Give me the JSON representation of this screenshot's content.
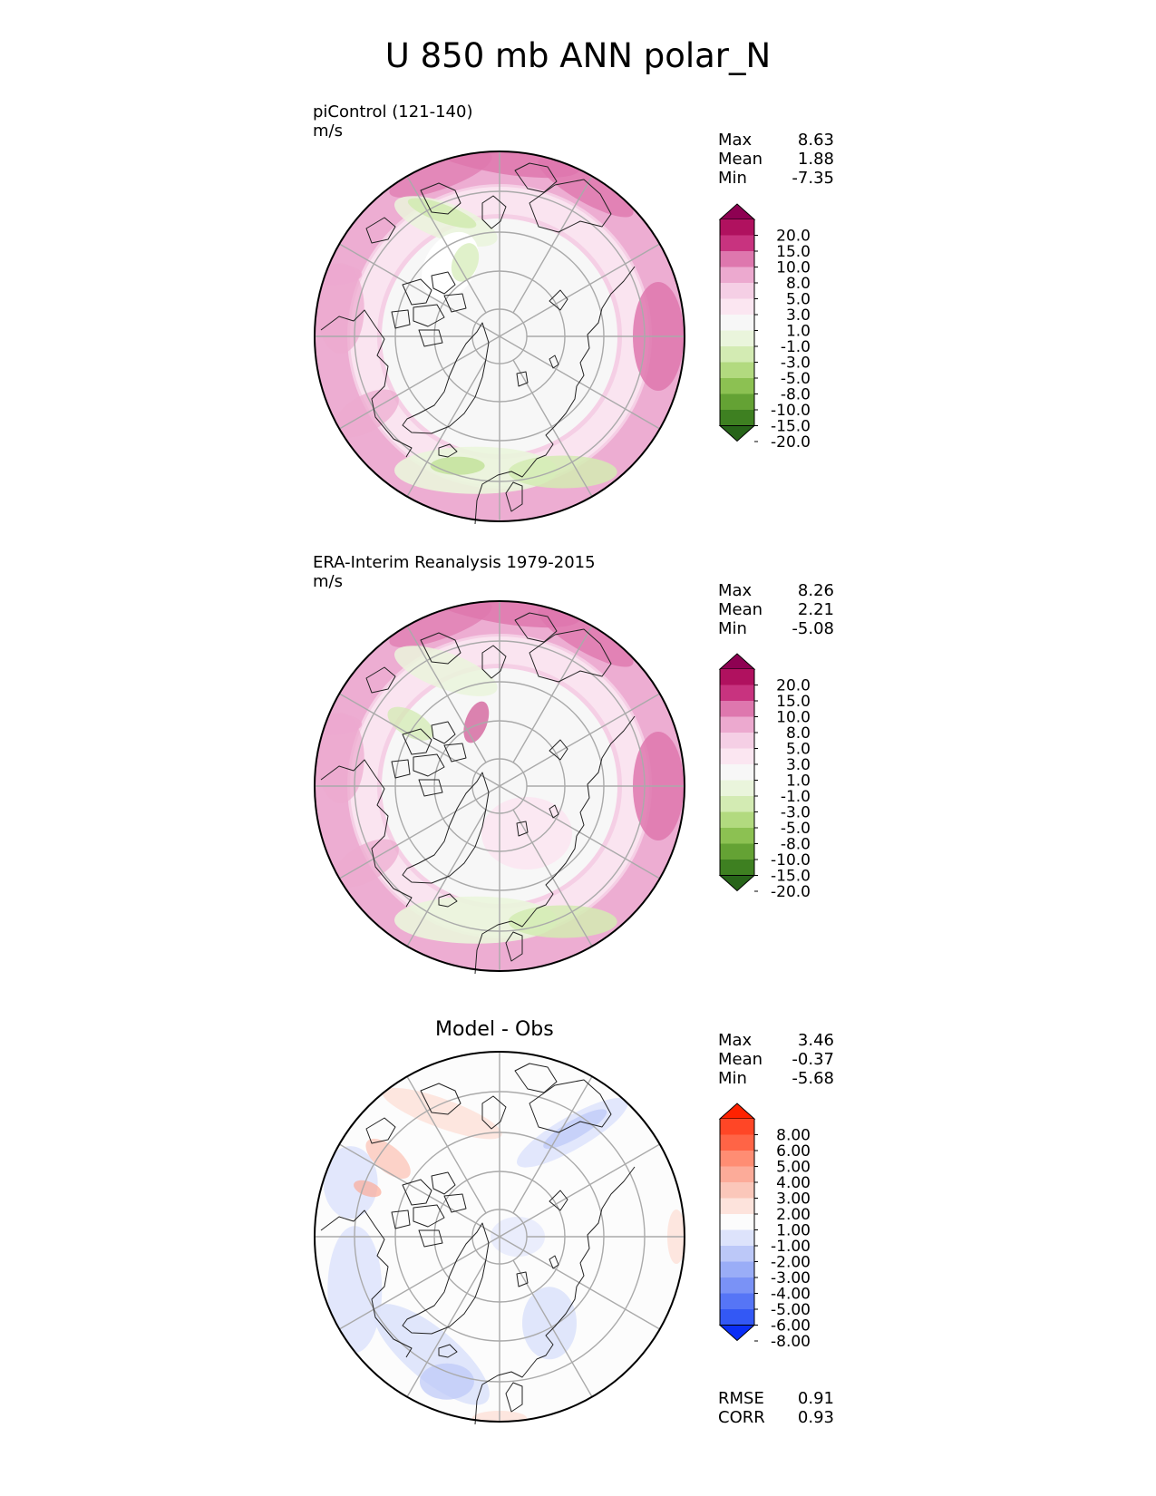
{
  "title": "U 850 mb ANN polar_N",
  "panels": [
    {
      "id": "test",
      "title_line1": "piControl (121-140)",
      "title_line2": "m/s",
      "stats": [
        {
          "label": "Max",
          "value": "8.63"
        },
        {
          "label": "Mean",
          "value": "1.88"
        },
        {
          "label": "Min",
          "value": "-7.35"
        }
      ],
      "colorbar": {
        "labels": [
          "20.0",
          "15.0",
          "10.0",
          "8.0",
          "5.0",
          "3.0",
          "1.0",
          "-1.0",
          "-3.0",
          "-5.0",
          "-8.0",
          "-10.0",
          "-15.0",
          "-20.0"
        ],
        "colors": [
          "#8e0152",
          "#b0115f",
          "#c8337f",
          "#de77ae",
          "#eca9cf",
          "#f5cfe5",
          "#fbe6f1",
          "#f7f7f7",
          "#eaf5dc",
          "#d3ebb3",
          "#b2da7f",
          "#8cc152",
          "#64a234",
          "#3e8021",
          "#276419"
        ]
      }
    },
    {
      "id": "reference",
      "title_line1": "ERA-Interim Reanalysis 1979-2015",
      "title_line2": "m/s",
      "stats": [
        {
          "label": "Max",
          "value": "8.26"
        },
        {
          "label": "Mean",
          "value": "2.21"
        },
        {
          "label": "Min",
          "value": "-5.08"
        }
      ],
      "colorbar": {
        "labels": [
          "20.0",
          "15.0",
          "10.0",
          "8.0",
          "5.0",
          "3.0",
          "1.0",
          "-1.0",
          "-3.0",
          "-5.0",
          "-8.0",
          "-10.0",
          "-15.0",
          "-20.0"
        ],
        "colors": [
          "#8e0152",
          "#b0115f",
          "#c8337f",
          "#de77ae",
          "#eca9cf",
          "#f5cfe5",
          "#fbe6f1",
          "#f7f7f7",
          "#eaf5dc",
          "#d3ebb3",
          "#b2da7f",
          "#8cc152",
          "#64a234",
          "#3e8021",
          "#276419"
        ]
      }
    },
    {
      "id": "diff",
      "title_line1": "Model - Obs",
      "stats": [
        {
          "label": "Max",
          "value": "3.46"
        },
        {
          "label": "Mean",
          "value": "-0.37"
        },
        {
          "label": "Min",
          "value": "-5.68"
        }
      ],
      "extra_stats": [
        {
          "label": "RMSE",
          "value": "0.91"
        },
        {
          "label": "CORR",
          "value": "0.93"
        }
      ],
      "colorbar": {
        "labels": [
          "8.00",
          "6.00",
          "5.00",
          "4.00",
          "3.00",
          "2.00",
          "1.00",
          "-1.00",
          "-2.00",
          "-3.00",
          "-4.00",
          "-5.00",
          "-6.00",
          "-8.00"
        ],
        "colors": [
          "#ff2200",
          "#ff4626",
          "#ff6446",
          "#ff8d73",
          "#fcab99",
          "#fbc7ba",
          "#fde3dc",
          "#fcfcfc",
          "#dde3fb",
          "#bcc8f8",
          "#9aadf7",
          "#7a92f6",
          "#5675f6",
          "#3358f5",
          "#0a2ef6"
        ]
      }
    }
  ],
  "chart_data": [
    {
      "type": "heatmap",
      "title": "piControl (121-140)",
      "units": "m/s",
      "projection": "north polar stereographic",
      "max": 8.63,
      "mean": 1.88,
      "min": -7.35,
      "levels": [
        -20,
        -15,
        -10,
        -8,
        -5,
        -3,
        -1,
        1,
        3,
        5,
        8,
        10,
        15,
        20
      ],
      "colormap": "PiYG"
    },
    {
      "type": "heatmap",
      "title": "ERA-Interim Reanalysis 1979-2015",
      "units": "m/s",
      "projection": "north polar stereographic",
      "max": 8.26,
      "mean": 2.21,
      "min": -5.08,
      "levels": [
        -20,
        -15,
        -10,
        -8,
        -5,
        -3,
        -1,
        1,
        3,
        5,
        8,
        10,
        15,
        20
      ],
      "colormap": "PiYG"
    },
    {
      "type": "heatmap",
      "title": "Model - Obs",
      "projection": "north polar stereographic",
      "max": 3.46,
      "mean": -0.37,
      "min": -5.68,
      "rmse": 0.91,
      "corr": 0.93,
      "levels": [
        -8,
        -6,
        -5,
        -4,
        -3,
        -2,
        -1,
        1,
        2,
        3,
        4,
        5,
        6,
        8
      ],
      "colormap": "bwr"
    }
  ]
}
